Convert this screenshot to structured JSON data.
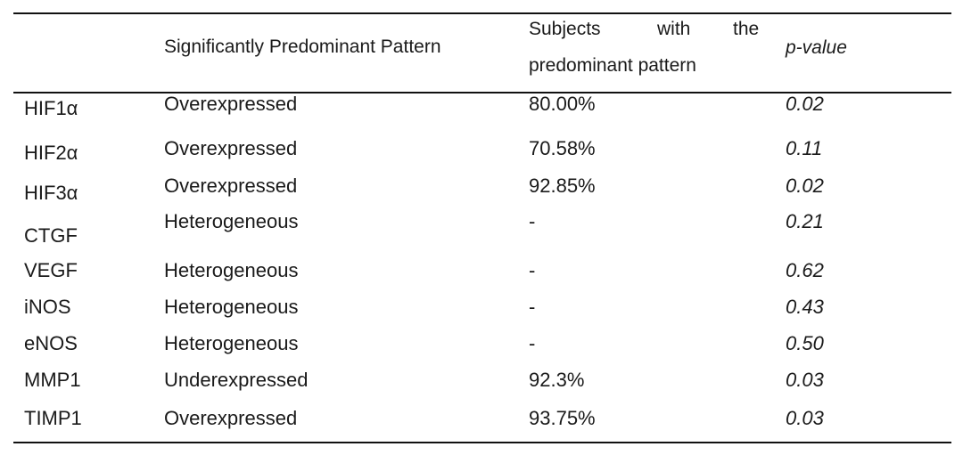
{
  "table": {
    "headers": {
      "marker": "",
      "pattern": "Significantly Predominant Pattern",
      "subjects_words": [
        "Subjects",
        "with",
        "the"
      ],
      "subjects_line2": "predominant pattern",
      "pvalue": "p-value"
    },
    "rows": [
      {
        "marker": "HIF1α",
        "pattern": "Overexpressed",
        "subjects": "80.00%",
        "pvalue": "0.02"
      },
      {
        "marker": "HIF2α",
        "pattern": "Overexpressed",
        "subjects": "70.58%",
        "pvalue": "0.11"
      },
      {
        "marker": "HIF3α",
        "pattern": "Overexpressed",
        "subjects": "92.85%",
        "pvalue": "0.02"
      },
      {
        "marker": "CTGF",
        "pattern": "Heterogeneous",
        "subjects": "-",
        "pvalue": "0.21"
      },
      {
        "marker": "VEGF",
        "pattern": "Heterogeneous",
        "subjects": "-",
        "pvalue": "0.62"
      },
      {
        "marker": "iNOS",
        "pattern": "Heterogeneous",
        "subjects": "-",
        "pvalue": "0.43"
      },
      {
        "marker": "eNOS",
        "pattern": "Heterogeneous",
        "subjects": "-",
        "pvalue": "0.50"
      },
      {
        "marker": "MMP1",
        "pattern": "Underexpressed",
        "subjects": "92.3%",
        "pvalue": "0.03"
      },
      {
        "marker": "TIMP1",
        "pattern": "Overexpressed",
        "subjects": "93.75%",
        "pvalue": "0.03"
      }
    ]
  }
}
